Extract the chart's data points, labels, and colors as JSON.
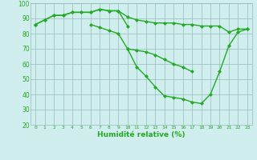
{
  "x": [
    0,
    1,
    2,
    3,
    4,
    5,
    6,
    7,
    8,
    9,
    10,
    11,
    12,
    13,
    14,
    15,
    16,
    17,
    18,
    19,
    20,
    21,
    22,
    23
  ],
  "line_flat": [
    86,
    89,
    92,
    92,
    94,
    94,
    94,
    96,
    95,
    95,
    91,
    89,
    88,
    87,
    87,
    87,
    86,
    86,
    85,
    85,
    85,
    81,
    83,
    83
  ],
  "line_mid": [
    86,
    null,
    null,
    null,
    null,
    null,
    86,
    84,
    82,
    80,
    70,
    69,
    68,
    66,
    63,
    60,
    58,
    55,
    null,
    null,
    null,
    null,
    null,
    null
  ],
  "line_low": [
    86,
    null,
    null,
    null,
    null,
    null,
    null,
    null,
    null,
    null,
    70,
    58,
    52,
    45,
    39,
    38,
    37,
    35,
    34,
    40,
    55,
    72,
    81,
    83
  ],
  "line_peak": [
    86,
    89,
    92,
    92,
    94,
    94,
    94,
    96,
    95,
    95,
    85,
    null,
    null,
    null,
    null,
    null,
    null,
    null,
    null,
    null,
    null,
    null,
    null,
    null
  ],
  "xlabel": "Humidité relative (%)",
  "ylim": [
    20,
    100
  ],
  "xlim": [
    -0.5,
    23.5
  ],
  "yticks": [
    20,
    30,
    40,
    50,
    60,
    70,
    80,
    90,
    100
  ],
  "xticks": [
    0,
    1,
    2,
    3,
    4,
    5,
    6,
    7,
    8,
    9,
    10,
    11,
    12,
    13,
    14,
    15,
    16,
    17,
    18,
    19,
    20,
    21,
    22,
    23
  ],
  "line_color": "#22aa22",
  "bg_color": "#d0eeee",
  "grid_color": "#99bbbb",
  "markersize": 2.5,
  "linewidth": 1.0
}
